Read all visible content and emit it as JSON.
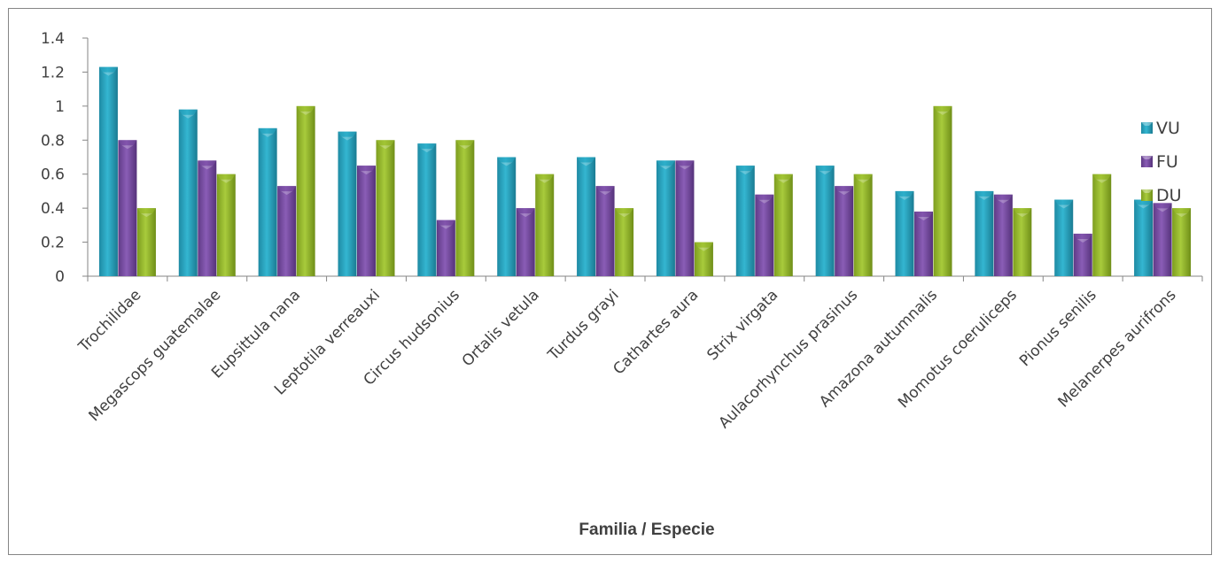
{
  "chart_data": {
    "type": "bar",
    "title": "",
    "xlabel": "Familia / Especie",
    "ylabel": "",
    "ylim": [
      0,
      1.4
    ],
    "yticks": [
      "0",
      "0.2",
      "0.4",
      "0.6",
      "0.8",
      "1",
      "1.2",
      "1.4"
    ],
    "categories": [
      "Trochilidae",
      "Megascops guatemalae",
      "Eupsittula nana",
      "Leptotila verreauxi",
      "Circus hudsonius",
      "Ortalis vetula",
      "Turdus grayi",
      "Cathartes aura",
      "Strix virgata",
      "Aulacorhynchus prasinus",
      "Amazona autumnalis",
      "Momotus coeruliceps",
      "Pionus senilis",
      "Melanerpes aurifrons"
    ],
    "series": [
      {
        "name": "VU",
        "color": "#2aa9c4",
        "values": [
          1.23,
          0.98,
          0.87,
          0.85,
          0.78,
          0.7,
          0.7,
          0.68,
          0.65,
          0.65,
          0.5,
          0.5,
          0.45,
          0.45
        ]
      },
      {
        "name": "FU",
        "color": "#7b4fa6",
        "values": [
          0.8,
          0.68,
          0.53,
          0.65,
          0.33,
          0.4,
          0.53,
          0.68,
          0.48,
          0.53,
          0.38,
          0.48,
          0.25,
          0.43
        ]
      },
      {
        "name": "DU",
        "color": "#9cbf30",
        "values": [
          0.4,
          0.6,
          1.0,
          0.8,
          0.8,
          0.6,
          0.4,
          0.2,
          0.6,
          0.6,
          1.0,
          0.4,
          0.6,
          0.4
        ]
      }
    ],
    "legend": {
      "position": "right"
    },
    "grid": false
  }
}
